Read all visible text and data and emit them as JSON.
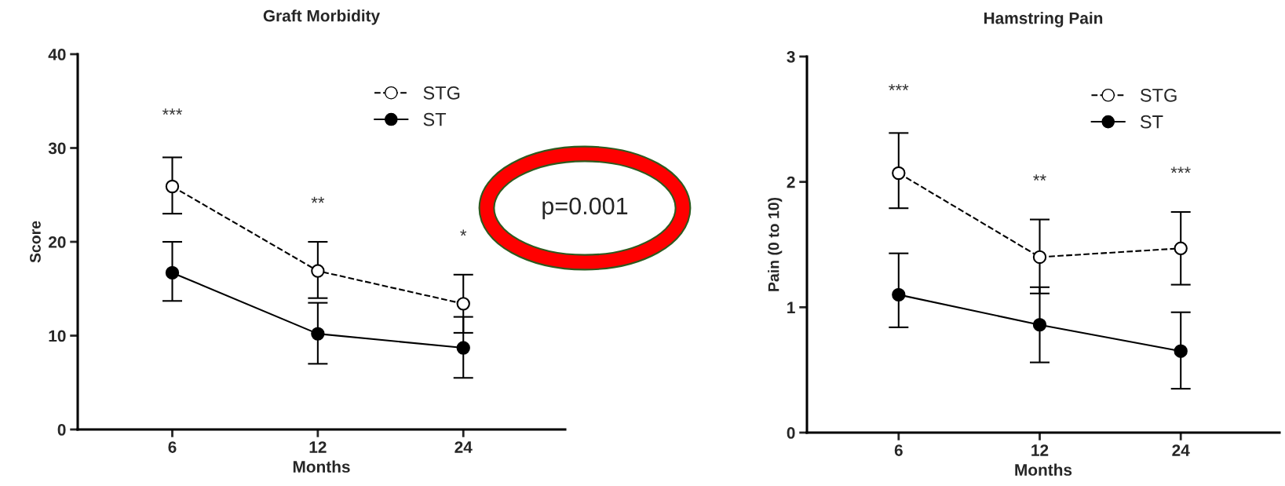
{
  "chart_data": [
    {
      "type": "line",
      "title": "Graft Morbidity",
      "xlabel": "Months",
      "ylabel": "Score",
      "categories": [
        "6",
        "12",
        "24"
      ],
      "ylim": [
        0,
        40
      ],
      "yticks": [
        0,
        10,
        20,
        30,
        40
      ],
      "grid": false,
      "legend": "top right",
      "marker": "circle",
      "series": [
        {
          "name": "STG",
          "color": "#000000",
          "line_style": "dashed",
          "values": [
            25.9,
            16.9,
            13.4
          ],
          "errors": [
            [
              23.0,
              29.0
            ],
            [
              14.0,
              20.0
            ],
            [
              10.3,
              16.5
            ]
          ]
        },
        {
          "name": "ST",
          "color": "#000000",
          "line_style": "solid",
          "values": [
            16.7,
            10.2,
            8.7
          ],
          "errors": [
            [
              13.7,
              20.0
            ],
            [
              7.0,
              13.5
            ],
            [
              5.5,
              12.0
            ]
          ]
        }
      ],
      "annotations": [
        "***",
        "**",
        "*",
        "p=0.001"
      ]
    },
    {
      "type": "line",
      "title": "Hamstring Pain",
      "xlabel": "Months",
      "ylabel": "Pain (0 to 10)",
      "categories": [
        "6",
        "12",
        "24"
      ],
      "ylim": [
        0,
        3
      ],
      "yticks": [
        0,
        1,
        2,
        3
      ],
      "grid": false,
      "legend": "top right",
      "marker": "circle",
      "series": [
        {
          "name": "STG",
          "color": "#000000",
          "line_style": "dashed",
          "values": [
            2.07,
            1.4,
            1.47
          ],
          "errors": [
            [
              1.79,
              2.39
            ],
            [
              1.11,
              1.7
            ],
            [
              1.18,
              1.76
            ]
          ]
        },
        {
          "name": "ST",
          "color": "#000000",
          "line_style": "solid",
          "values": [
            1.1,
            0.86,
            0.65
          ],
          "errors": [
            [
              0.84,
              1.43
            ],
            [
              0.56,
              1.16
            ],
            [
              0.35,
              0.96
            ]
          ]
        }
      ],
      "annotations": [
        "***",
        "**",
        "***"
      ]
    }
  ]
}
